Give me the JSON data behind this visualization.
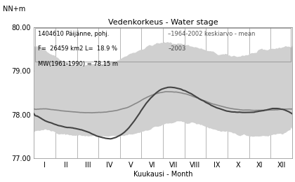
{
  "title": "Vedenkorkeus - Water stage",
  "ylabel": "NN+m",
  "xlabel": "Kuukausi - Month",
  "ylim": [
    77.0,
    80.0
  ],
  "yticks": [
    77.0,
    78.0,
    79.0,
    80.0
  ],
  "month_labels": [
    "I",
    "II",
    "III",
    "IV",
    "V",
    "VI",
    "VII",
    "VIII",
    "IX",
    "X",
    "XI",
    "XII"
  ],
  "legend_text1": "1404610 Päijänne, pohj.",
  "legend_text2": "F=  26459 km2 L=  18.9 %",
  "legend_text3": "MW(1961-1990) = 78.15 m",
  "legend_line1": "–1964-2002 keskiarvo - mean",
  "legend_line2": "–2003",
  "band_color": "#d0d0d0",
  "mean_color": "#888888",
  "year2003_color": "#444444",
  "grid_color": "#999999",
  "mean_line_monthly": [
    78.13,
    78.08,
    78.05,
    78.07,
    78.2,
    78.45,
    78.52,
    78.4,
    78.22,
    78.12,
    78.1,
    78.12
  ],
  "year2003_monthly": [
    77.87,
    77.72,
    77.6,
    77.45,
    77.75,
    78.42,
    78.62,
    78.42,
    78.15,
    78.05,
    78.08,
    78.13
  ],
  "band_upper_monthly": [
    79.5,
    79.2,
    79.15,
    79.2,
    79.4,
    79.6,
    79.65,
    79.55,
    79.4,
    79.35,
    79.45,
    79.55
  ],
  "band_lower_monthly": [
    77.65,
    77.55,
    77.52,
    77.5,
    77.55,
    77.7,
    77.82,
    77.8,
    77.65,
    77.55,
    77.52,
    77.58
  ]
}
